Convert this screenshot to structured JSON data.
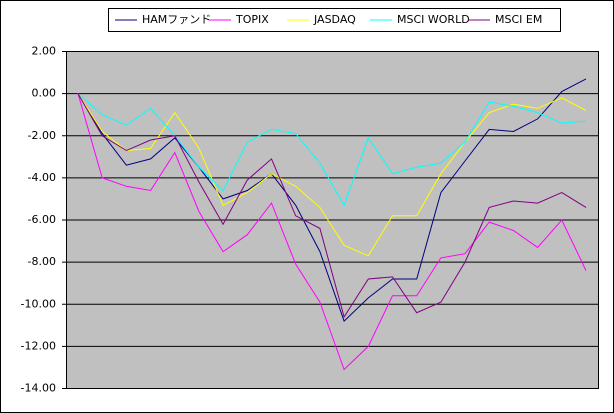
{
  "chart_data": {
    "type": "line",
    "categories": [
      null,
      null,
      null,
      null,
      null,
      null,
      null,
      null,
      null,
      null,
      null,
      null,
      null,
      null,
      null,
      null,
      null,
      null,
      null,
      null,
      null,
      null
    ],
    "series": [
      {
        "name": "HAMファンド",
        "color": "#000080",
        "values": [
          0,
          -1.9,
          -3.4,
          -3.1,
          -2.1,
          -3.5,
          -5.0,
          -4.6,
          -3.8,
          -5.3,
          -7.5,
          -10.8,
          -9.7,
          -8.8,
          -8.8,
          -4.7,
          -3.2,
          -1.7,
          -1.8,
          -1.2,
          0.1,
          0.7
        ]
      },
      {
        "name": "TOPIX",
        "color": "#ff00ff",
        "values": [
          0,
          -4.0,
          -4.4,
          -4.6,
          -2.8,
          -5.6,
          -7.5,
          -6.7,
          -5.2,
          -8.1,
          -9.9,
          -13.1,
          -12.0,
          -9.6,
          -9.6,
          -7.8,
          -7.6,
          -6.1,
          -6.5,
          -7.3,
          -6.0,
          -8.4
        ]
      },
      {
        "name": "JASDAQ",
        "color": "#ffff00",
        "values": [
          0,
          -1.8,
          -2.7,
          -2.6,
          -0.9,
          -2.6,
          -5.3,
          -4.7,
          -3.8,
          -4.4,
          -5.4,
          -7.2,
          -7.7,
          -5.8,
          -5.8,
          -3.8,
          -2.3,
          -0.9,
          -0.5,
          -0.7,
          -0.2,
          -0.8
        ]
      },
      {
        "name": "MSCI WORLD",
        "color": "#00ffff",
        "values": [
          0,
          -1.0,
          -1.5,
          -0.7,
          -2.0,
          -3.5,
          -4.6,
          -2.3,
          -1.7,
          -1.9,
          -3.3,
          -5.3,
          -2.1,
          -3.8,
          -3.5,
          -3.3,
          -2.3,
          -0.4,
          -0.6,
          -0.9,
          -1.4,
          -1.3
        ]
      },
      {
        "name": "MSCI EM",
        "color": "#800080",
        "values": [
          0,
          -2.0,
          -2.7,
          -2.2,
          -2.0,
          -4.2,
          -6.2,
          -4.1,
          -3.1,
          -5.8,
          -6.4,
          -10.6,
          -8.8,
          -8.7,
          -10.4,
          -9.9,
          -8.0,
          -5.4,
          -5.1,
          -5.2,
          -4.7,
          -5.4
        ]
      }
    ],
    "ylim": [
      -14,
      2
    ],
    "yticks": [
      {
        "value": 2,
        "label": "2.00"
      },
      {
        "value": 0,
        "label": "0.00"
      },
      {
        "value": -2,
        "label": "-2.00"
      },
      {
        "value": -4,
        "label": "-4.00"
      },
      {
        "value": -6,
        "label": "-6.00"
      },
      {
        "value": -8,
        "label": "-8.00"
      },
      {
        "value": -10,
        "label": "-10.00"
      },
      {
        "value": -12,
        "label": "-12.00"
      },
      {
        "value": -14,
        "label": "-14.00"
      }
    ],
    "grid": true,
    "legend": "top"
  }
}
